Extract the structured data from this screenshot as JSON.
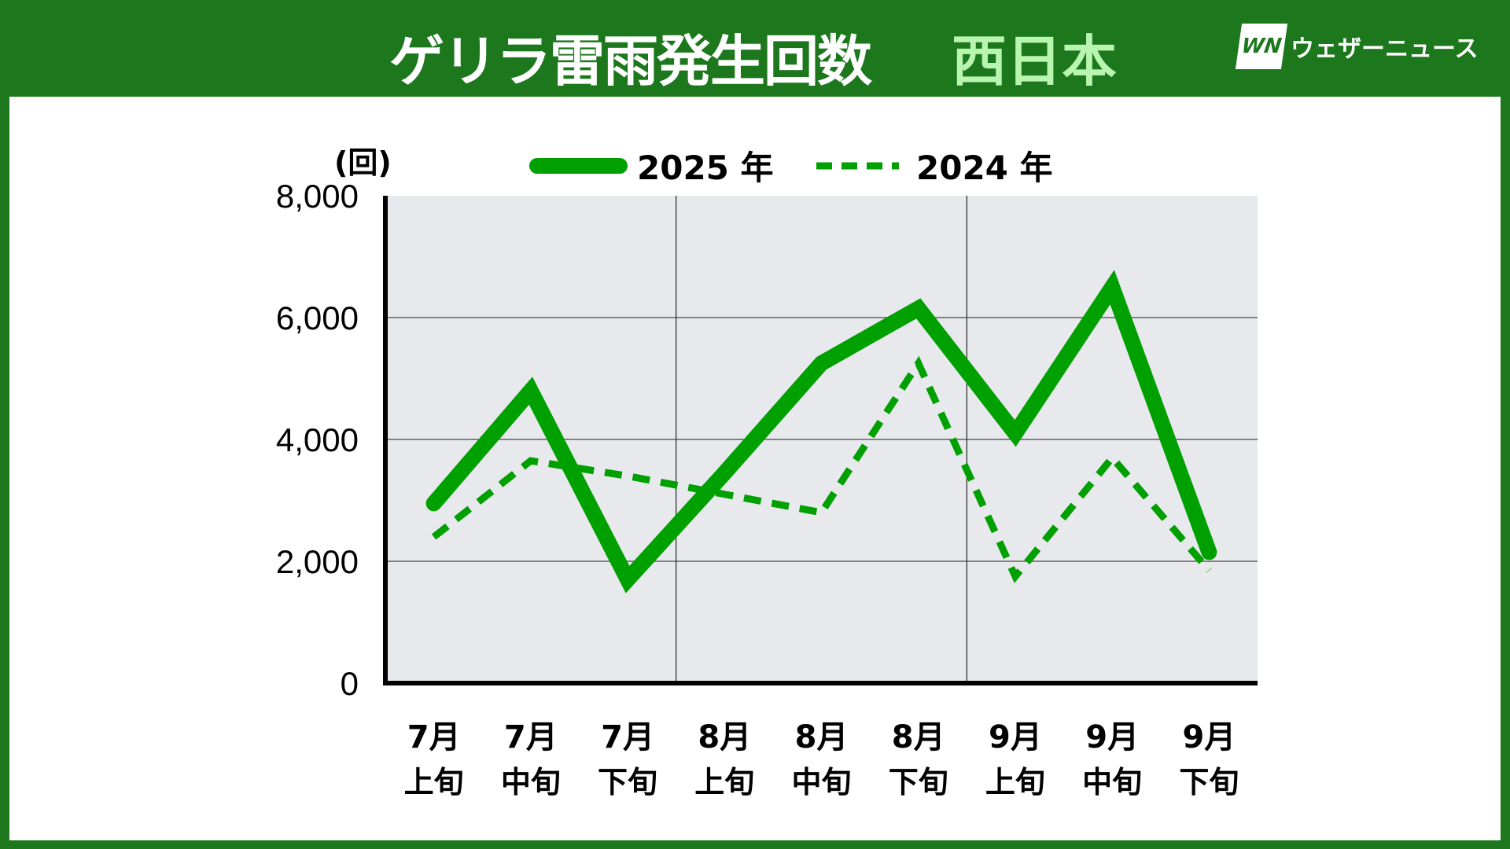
{
  "header": {
    "title": "ゲリラ雷雨発生回数",
    "region": "西日本",
    "logo_mark": "WN",
    "logo_text": "ウェザーニュース"
  },
  "colors": {
    "header_bg": "#1d781d",
    "line": "#00a000",
    "plot_bg": "#e8e9ed"
  },
  "chart_data": {
    "type": "line",
    "title": "ゲリラ雷雨発生回数 西日本",
    "ylabel": "(回)",
    "ylim": [
      0,
      8000
    ],
    "yticks": [
      0,
      2000,
      4000,
      6000,
      8000
    ],
    "ytick_labels": [
      "0",
      "2,000",
      "4,000",
      "6,000",
      "8,000"
    ],
    "categories": [
      [
        "7月",
        "上旬"
      ],
      [
        "7月",
        "中旬"
      ],
      [
        "7月",
        "下旬"
      ],
      [
        "8月",
        "上旬"
      ],
      [
        "8月",
        "中旬"
      ],
      [
        "8月",
        "下旬"
      ],
      [
        "9月",
        "上旬"
      ],
      [
        "9月",
        "中旬"
      ],
      [
        "9月",
        "下旬"
      ]
    ],
    "legend_position": "top",
    "series": [
      {
        "name": "2025 年",
        "style": "solid",
        "values": [
          2950,
          4800,
          1700,
          3450,
          5250,
          6150,
          4100,
          6500,
          2150
        ]
      },
      {
        "name": "2024 年",
        "style": "dashed",
        "values": [
          2400,
          3650,
          3400,
          3100,
          2800,
          5250,
          1750,
          3700,
          1850
        ]
      }
    ]
  }
}
